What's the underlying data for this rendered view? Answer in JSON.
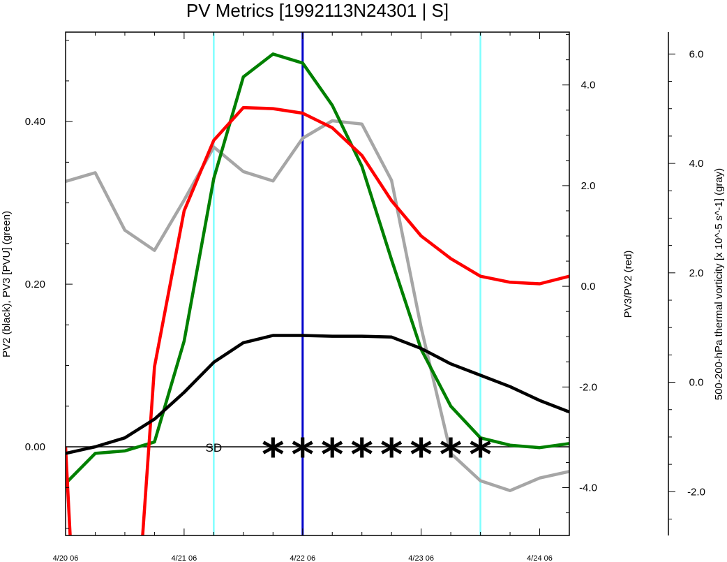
{
  "chart_data": {
    "type": "line",
    "title": "PV Metrics [1992113N24301 | S]",
    "x_tick_labels": [
      "4/20 06",
      "4/21 06",
      "4/22 06",
      "4/23 06",
      "4/24 06"
    ],
    "x_range_hours": [
      0,
      102
    ],
    "left_axis": {
      "label": "PV2 (black), PV3 [PVU] (green)",
      "range": [
        -0.109,
        0.51
      ],
      "ticks": [
        0.0,
        0.2,
        0.4
      ],
      "tick_labels": [
        "0.00",
        "0.20",
        "0.40"
      ],
      "minor_step": 0.05
    },
    "right_axis_1": {
      "label": "PV3/PV2 (red)",
      "range": [
        -4.95,
        5.05
      ],
      "ticks": [
        -4.0,
        -2.0,
        0.0,
        2.0,
        4.0
      ],
      "tick_labels": [
        "-4.0",
        "-2.0",
        "0.0",
        "2.0",
        "4.0"
      ],
      "minor_step": 0.5
    },
    "right_axis_2": {
      "label": "500-200-hPa thermal vorticity [x 10^-5 s^-1] (gray)",
      "range": [
        -2.8,
        6.4
      ],
      "ticks": [
        -2.0,
        0.0,
        2.0,
        4.0,
        6.0
      ],
      "tick_labels": [
        "-2.0",
        "0.0",
        "2.0",
        "4.0",
        "6.0"
      ],
      "minor_step": 0.5
    },
    "series": [
      {
        "axis": "right_axis_2",
        "color": "#a6a6a6",
        "x": [
          0,
          6,
          12,
          18,
          24,
          30,
          36,
          42,
          48,
          54,
          60,
          66,
          72,
          78,
          84,
          90,
          96,
          102
        ],
        "values": [
          3.67,
          3.83,
          2.78,
          2.41,
          3.33,
          4.3,
          3.85,
          3.68,
          4.46,
          4.78,
          4.72,
          3.69,
          1.0,
          -1.3,
          -1.8,
          -1.98,
          -1.75,
          -1.63
        ]
      },
      {
        "axis": "left_axis",
        "color": "#008000",
        "x": [
          0,
          6,
          12,
          18,
          24,
          30,
          36,
          42,
          48,
          54,
          60,
          66,
          72,
          78,
          84,
          90,
          96,
          102
        ],
        "values": [
          -0.045,
          -0.008,
          -0.005,
          0.006,
          0.13,
          0.33,
          0.455,
          0.483,
          0.472,
          0.42,
          0.345,
          0.23,
          0.12,
          0.05,
          0.011,
          0.002,
          -0.001,
          0.004
        ]
      },
      {
        "axis": "right_axis_1",
        "color": "#ff0000",
        "x": [
          0,
          1,
          15.5,
          18,
          24,
          30,
          36,
          42,
          48,
          54,
          60,
          66,
          72,
          78,
          84,
          90,
          96,
          102
        ],
        "values": [
          -3.2,
          -5.1,
          -5.1,
          -1.6,
          1.5,
          2.9,
          3.55,
          3.53,
          3.44,
          3.15,
          2.6,
          1.7,
          1.0,
          0.55,
          0.2,
          0.08,
          0.05,
          0.2
        ]
      },
      {
        "axis": "left_axis",
        "color": "#000000",
        "x": [
          0,
          6,
          12,
          18,
          24,
          30,
          36,
          42,
          48,
          54,
          60,
          66,
          72,
          78,
          84,
          90,
          96,
          102
        ],
        "values": [
          -0.008,
          0.0,
          0.011,
          0.034,
          0.067,
          0.104,
          0.128,
          0.137,
          0.137,
          0.136,
          0.136,
          0.135,
          0.121,
          0.102,
          0.088,
          0.074,
          0.057,
          0.043
        ]
      }
    ],
    "vertical_lines": [
      {
        "x": 30,
        "color": "#7fffff"
      },
      {
        "x": 48,
        "color": "#0000cc"
      },
      {
        "x": 84,
        "color": "#7fffff"
      }
    ],
    "zero_line_color": "#000000",
    "marker_label": "SD",
    "marker_label_x": 30,
    "star_marker": "*",
    "star_x": [
      42,
      48,
      54,
      60,
      66,
      72,
      78,
      84
    ]
  }
}
